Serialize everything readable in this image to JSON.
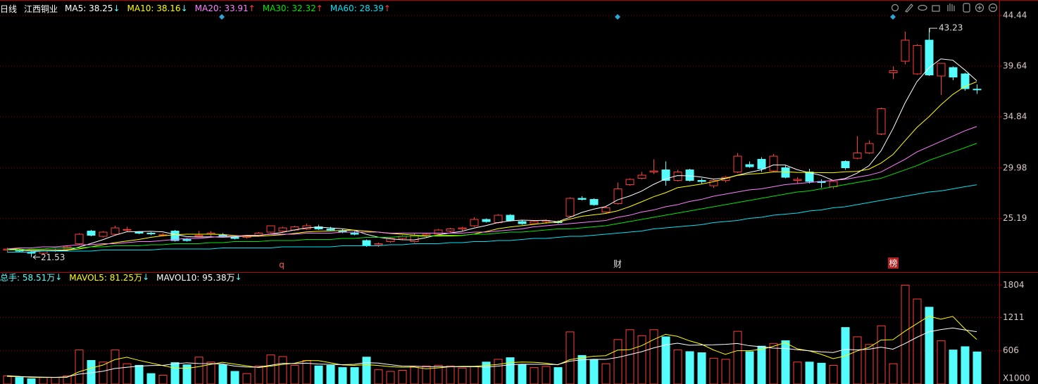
{
  "chart_data": [
    {
      "type": "candlestick",
      "period": "日线",
      "title": "江西铜业",
      "up_color": "#ff3c3c",
      "down_color": "#54fcfc",
      "ylim": [
        20.37,
        45.57
      ],
      "yticks": [
        44.44,
        39.64,
        34.84,
        29.98,
        25.19
      ],
      "grid": true,
      "high_label": 43.23,
      "low_label": 21.53,
      "events": [
        "q",
        "财",
        "榜"
      ],
      "open": [
        22.2,
        22.2,
        22.0,
        21.9,
        22.1,
        22.3,
        22.8,
        24.0,
        23.5,
        23.7,
        24.1,
        23.9,
        23.8,
        23.6,
        24.0,
        23.2,
        23.5,
        23.7,
        23.6,
        23.4,
        23.4,
        23.6,
        23.9,
        24.0,
        24.1,
        24.2,
        24.4,
        24.2,
        24.0,
        23.8,
        23.1,
        22.7,
        23.0,
        23.3,
        23.0,
        23.6,
        23.7,
        24.0,
        24.2,
        24.5,
        25.1,
        24.8,
        25.5,
        24.9,
        24.7,
        24.9,
        24.9,
        25.4,
        27.1,
        27.0,
        25.8,
        26.6,
        28.4,
        29.0,
        29.6,
        29.8,
        28.8,
        29.8,
        28.8,
        28.3,
        28.8,
        29.6,
        30.3,
        30.8,
        29.7,
        30.0,
        28.8,
        29.6,
        28.7,
        28.2,
        30.6,
        30.9,
        31.4,
        33.2,
        39.0,
        40.1,
        38.9,
        42.1,
        38.7,
        39.5,
        38.9,
        37.45
      ],
      "high": [
        22.4,
        22.3,
        22.1,
        22.2,
        22.3,
        22.6,
        23.8,
        24.1,
        24.0,
        24.5,
        24.4,
        24.0,
        23.9,
        23.8,
        24.1,
        23.3,
        24.0,
        24.0,
        23.8,
        23.6,
        23.6,
        23.9,
        24.5,
        24.4,
        24.5,
        24.7,
        24.6,
        24.4,
        24.2,
        24.0,
        23.2,
        22.9,
        23.4,
        23.6,
        23.8,
        23.8,
        24.2,
        24.3,
        24.4,
        25.3,
        25.2,
        25.6,
        25.6,
        25.0,
        25.0,
        25.1,
        25.0,
        27.2,
        27.3,
        27.1,
        26.4,
        28.6,
        29.0,
        29.6,
        30.8,
        30.6,
        29.8,
        29.9,
        29.0,
        28.9,
        29.2,
        31.4,
        30.6,
        31.0,
        31.3,
        30.2,
        29.1,
        29.9,
        28.9,
        28.8,
        30.7,
        33.0,
        32.6,
        35.7,
        39.6,
        42.9,
        41.7,
        43.23,
        39.9,
        39.6,
        39.0,
        37.9
      ],
      "low": [
        22.0,
        22.0,
        21.53,
        21.8,
        22.0,
        22.2,
        22.7,
        23.5,
        23.4,
        23.6,
        23.9,
        23.7,
        23.6,
        23.5,
        23.0,
        23.0,
        23.4,
        23.5,
        23.4,
        23.2,
        23.3,
        23.5,
        23.8,
        23.9,
        24.0,
        24.1,
        24.1,
        24.0,
        23.8,
        23.6,
        22.5,
        22.5,
        22.9,
        23.2,
        22.9,
        23.4,
        23.6,
        23.9,
        24.0,
        24.4,
        24.8,
        24.7,
        24.9,
        24.6,
        24.6,
        24.7,
        24.7,
        25.3,
        26.9,
        26.4,
        25.7,
        26.5,
        28.3,
        28.9,
        29.4,
        28.3,
        28.7,
        28.7,
        28.5,
        28.1,
        28.6,
        29.5,
        30.0,
        29.6,
        29.6,
        29.0,
        28.5,
        28.5,
        28.1,
        28.0,
        29.8,
        30.8,
        31.3,
        33.1,
        38.4,
        39.8,
        38.8,
        38.7,
        36.9,
        38.3,
        37.3,
        37.0
      ],
      "close": [
        22.3,
        22.1,
        21.9,
        22.1,
        22.2,
        22.5,
        23.7,
        23.6,
        23.9,
        24.3,
        24.15,
        23.8,
        23.75,
        23.65,
        23.1,
        23.1,
        23.6,
        23.8,
        23.5,
        23.3,
        23.5,
        23.8,
        24.5,
        24.3,
        24.4,
        24.5,
        24.2,
        24.1,
        23.9,
        23.7,
        22.6,
        22.8,
        23.3,
        23.5,
        23.6,
        23.7,
        24.1,
        24.2,
        24.3,
        25.1,
        24.9,
        25.5,
        25.0,
        24.7,
        24.9,
        25.0,
        24.8,
        27.1,
        27.0,
        26.5,
        26.2,
        28.0,
        28.9,
        29.3,
        29.7,
        28.8,
        29.6,
        28.8,
        28.7,
        28.8,
        29.1,
        31.1,
        30.1,
        29.9,
        31.1,
        29.1,
        28.9,
        28.7,
        28.6,
        28.7,
        30.0,
        31.4,
        32.3,
        35.6,
        39.2,
        42.1,
        41.6,
        38.8,
        39.9,
        38.6,
        37.5,
        37.4
      ],
      "series": [
        {
          "label": "MA5: 38.25",
          "trend": "↓",
          "trend_color": "#54fcfc",
          "color": "#ffffff",
          "values": [
            22.3,
            22.2,
            22.1,
            22.1,
            22.12,
            22.16,
            22.48,
            22.82,
            23.18,
            23.6,
            23.93,
            23.95,
            23.98,
            23.93,
            23.69,
            23.48,
            23.44,
            23.45,
            23.42,
            23.46,
            23.54,
            23.58,
            23.72,
            23.88,
            24.1,
            24.3,
            24.38,
            24.3,
            24.22,
            24.08,
            23.7,
            23.42,
            23.26,
            23.18,
            23.16,
            23.38,
            23.64,
            23.82,
            23.98,
            24.28,
            24.52,
            24.8,
            24.96,
            25.04,
            25.0,
            25.02,
            24.88,
            25.3,
            25.76,
            26.08,
            26.32,
            26.96,
            27.32,
            27.78,
            28.42,
            28.94,
            29.26,
            29.24,
            29.12,
            28.94,
            29.0,
            29.3,
            29.56,
            29.8,
            30.26,
            30.26,
            29.82,
            29.54,
            29.28,
            28.8,
            28.98,
            29.48,
            30.2,
            31.6,
            33.7,
            36.12,
            38.16,
            39.46,
            40.32,
            40.2,
            39.28,
            38.25
          ]
        },
        {
          "label": "MA10: 38.16",
          "trend": "↓",
          "trend_color": "#54fcfc",
          "color": "#ffff00",
          "values": [
            22.3,
            22.3,
            22.2,
            22.2,
            22.2,
            22.2,
            22.3,
            22.5,
            22.7,
            22.9,
            23.05,
            23.2,
            23.4,
            23.55,
            23.65,
            23.7,
            23.7,
            23.7,
            23.68,
            23.58,
            23.51,
            23.51,
            23.58,
            23.65,
            23.78,
            23.92,
            23.98,
            24.01,
            24.05,
            24.09,
            24.0,
            23.9,
            23.78,
            23.7,
            23.62,
            23.54,
            23.53,
            23.54,
            23.58,
            23.72,
            23.95,
            24.22,
            24.39,
            24.51,
            24.64,
            24.77,
            24.84,
            25.13,
            25.4,
            25.54,
            25.67,
            25.92,
            26.31,
            26.77,
            27.25,
            27.63,
            28.11,
            28.28,
            28.45,
            28.68,
            28.97,
            29.28,
            29.4,
            29.46,
            29.6,
            29.63,
            29.56,
            29.55,
            29.54,
            29.53,
            29.62,
            29.65,
            29.87,
            30.44,
            31.25,
            32.55,
            33.82,
            34.83,
            35.96,
            36.95,
            37.7,
            38.16
          ]
        },
        {
          "label": "MA20: 33.91",
          "trend": "↑",
          "trend_color": "#ff3c3c",
          "color": "#ff80ff",
          "values": [
            22.3,
            22.4,
            22.4,
            22.5,
            22.5,
            22.6,
            22.7,
            22.7,
            22.8,
            22.8,
            22.9,
            23.0,
            23.0,
            23.1,
            23.2,
            23.3,
            23.3,
            23.4,
            23.5,
            23.5,
            23.6,
            23.6,
            23.7,
            23.7,
            23.7,
            23.8,
            23.8,
            23.8,
            23.9,
            23.9,
            23.9,
            23.9,
            23.8,
            23.8,
            23.8,
            23.8,
            23.8,
            23.8,
            23.8,
            23.9,
            23.9,
            24.0,
            24.1,
            24.2,
            24.4,
            24.5,
            24.6,
            24.7,
            24.8,
            24.9,
            25.0,
            25.3,
            25.5,
            25.8,
            26.0,
            26.3,
            26.5,
            26.8,
            27.0,
            27.3,
            27.5,
            27.7,
            27.9,
            28.0,
            28.2,
            28.4,
            28.5,
            28.6,
            28.7,
            28.8,
            28.9,
            29.1,
            29.3,
            29.6,
            30.2,
            30.8,
            31.5,
            32.0,
            32.5,
            33.0,
            33.5,
            33.91
          ]
        },
        {
          "label": "MA30: 32.32",
          "trend": "↑",
          "trend_color": "#ff3c3c",
          "color": "#00e600",
          "values": [
            22.2,
            22.2,
            22.3,
            22.3,
            22.4,
            22.4,
            22.4,
            22.5,
            22.5,
            22.6,
            22.6,
            22.6,
            22.7,
            22.7,
            22.8,
            22.8,
            22.8,
            22.9,
            22.9,
            23.0,
            23.0,
            23.0,
            23.1,
            23.1,
            23.1,
            23.2,
            23.2,
            23.2,
            23.3,
            23.3,
            23.4,
            23.4,
            23.4,
            23.5,
            23.5,
            23.5,
            23.6,
            23.6,
            23.6,
            23.7,
            23.7,
            23.8,
            23.9,
            23.9,
            24.0,
            24.1,
            24.2,
            24.2,
            24.3,
            24.4,
            24.5,
            24.7,
            24.9,
            25.1,
            25.3,
            25.5,
            25.7,
            25.9,
            26.1,
            26.3,
            26.5,
            26.7,
            26.9,
            27.1,
            27.3,
            27.5,
            27.7,
            27.8,
            28.0,
            28.2,
            28.4,
            28.6,
            28.8,
            29.0,
            29.4,
            29.8,
            30.2,
            30.7,
            31.1,
            31.5,
            31.9,
            32.32
          ]
        },
        {
          "label": "MA60: 28.39",
          "trend": "↑",
          "trend_color": "#ff3c3c",
          "color": "#02e2f4",
          "values": [
            22.0,
            22.0,
            22.0,
            22.1,
            22.1,
            22.1,
            22.1,
            22.1,
            22.2,
            22.2,
            22.2,
            22.2,
            22.2,
            22.3,
            22.3,
            22.3,
            22.3,
            22.3,
            22.4,
            22.4,
            22.4,
            22.4,
            22.4,
            22.5,
            22.5,
            22.5,
            22.5,
            22.5,
            22.6,
            22.6,
            22.6,
            22.6,
            22.7,
            22.7,
            22.8,
            22.8,
            22.8,
            22.9,
            22.9,
            23.0,
            23.0,
            23.1,
            23.1,
            23.2,
            23.3,
            23.3,
            23.4,
            23.5,
            23.5,
            23.6,
            23.7,
            23.8,
            23.9,
            24.0,
            24.2,
            24.3,
            24.4,
            24.5,
            24.6,
            24.8,
            24.9,
            25.0,
            25.2,
            25.3,
            25.5,
            25.6,
            25.7,
            25.9,
            26.0,
            26.2,
            26.3,
            26.5,
            26.7,
            26.9,
            27.1,
            27.3,
            27.5,
            27.7,
            27.8,
            28.0,
            28.2,
            28.39
          ]
        }
      ]
    },
    {
      "type": "bar",
      "label": "总手: 58.51万",
      "trend": "↓",
      "trend_color": "#54fcfc",
      "label_color": "#54fcfc",
      "unit_label": "X1000",
      "ylim": [
        0,
        2000
      ],
      "yticks": [
        1804,
        1211,
        606
      ],
      "grid": true,
      "values": [
        150,
        120,
        95,
        120,
        120,
        150,
        620,
        430,
        400,
        620,
        370,
        340,
        190,
        160,
        390,
        350,
        490,
        400,
        350,
        230,
        190,
        330,
        530,
        500,
        340,
        430,
        330,
        340,
        300,
        300,
        490,
        260,
        230,
        250,
        320,
        330,
        340,
        330,
        290,
        320,
        400,
        450,
        480,
        350,
        300,
        320,
        300,
        950,
        520,
        440,
        370,
        810,
        990,
        880,
        990,
        860,
        620,
        590,
        570,
        470,
        450,
        960,
        590,
        690,
        740,
        790,
        400,
        400,
        380,
        340,
        1030,
        860,
        720,
        1060,
        370,
        1800,
        1550,
        1400,
        790,
        620,
        680,
        585.1
      ],
      "series": [
        {
          "label": "MAVOL5: 81.25万",
          "trend": "↓",
          "trend_color": "#54fcfc",
          "color": "#ffff00",
          "values": [
            150,
            140,
            120,
            120,
            120,
            121,
            221,
            288,
            344,
            444,
            488,
            432,
            384,
            336,
            290,
            286,
            316,
            358,
            396,
            364,
            332,
            300,
            326,
            356,
            378,
            426,
            426,
            388,
            348,
            340,
            352,
            338,
            316,
            306,
            310,
            278,
            294,
            314,
            322,
            322,
            336,
            358,
            388,
            400,
            396,
            380,
            350,
            444,
            478,
            506,
            516,
            618,
            626,
            698,
            808,
            906,
            868,
            788,
            726,
            622,
            540,
            608,
            608,
            632,
            686,
            754,
            642,
            604,
            542,
            462,
            510,
            602,
            666,
            802,
            808,
            962,
            1100,
            1236,
            1182,
            1232,
            1008,
            812.5
          ]
        },
        {
          "label": "MAVOL10: 95.38万",
          "trend": "↓",
          "trend_color": "#54fcfc",
          "color": "#ffffff",
          "values": [
            140,
            135,
            130,
            125,
            122,
            130,
            180,
            204,
            232,
            282,
            304,
            326,
            336,
            340,
            367,
            387,
            374,
            371,
            366,
            327,
            309,
            308,
            342,
            376,
            371,
            379,
            363,
            357,
            352,
            359,
            389,
            382,
            352,
            327,
            325,
            315,
            316,
            315,
            314,
            316,
            307,
            326,
            351,
            361,
            359,
            358,
            354,
            416,
            439,
            451,
            448,
            484,
            535,
            588,
            657,
            711,
            743,
            707,
            712,
            715,
            723,
            738,
            698,
            679,
            654,
            647,
            625,
            606,
            587,
            574,
            632,
            622,
            635,
            672,
            635,
            736,
            851,
            951,
            992,
            1020,
            985,
            953.8
          ]
        }
      ]
    }
  ]
}
